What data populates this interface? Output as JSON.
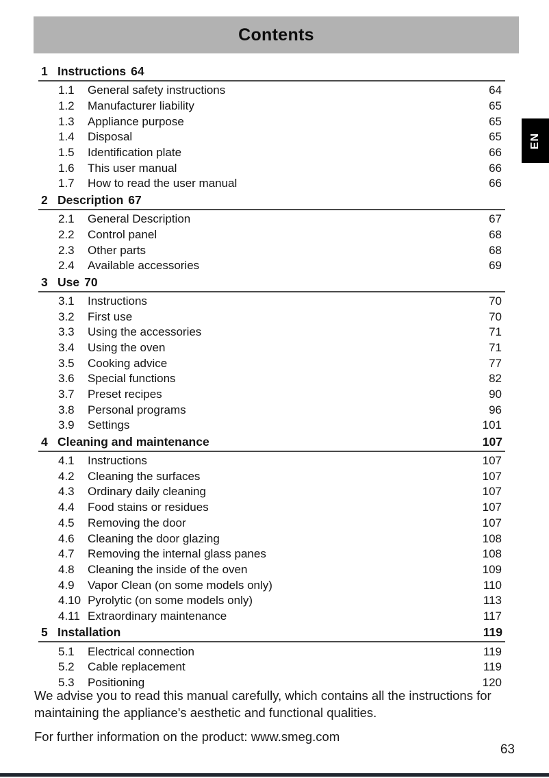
{
  "page": {
    "title": "Contents",
    "language_tab": "EN",
    "page_number": "63",
    "note_paragraph": "We advise you to read this manual carefully, which contains all the instructions for maintaining the appliance's aesthetic and functional qualities.",
    "info_line": "For further information on the product: www.smeg.com"
  },
  "colors": {
    "header_bg": "#b2b2b2",
    "tab_bg": "#000000",
    "tab_text": "#ffffff",
    "bottom_bar": "#1f262e",
    "text": "#141414"
  },
  "toc": {
    "sections": [
      {
        "number": "1",
        "title": "Instructions",
        "page": "64",
        "page_inline": true,
        "items": [
          {
            "number": "1.1",
            "label": "General safety instructions",
            "page": "64"
          },
          {
            "number": "1.2",
            "label": "Manufacturer liability",
            "page": "65"
          },
          {
            "number": "1.3",
            "label": "Appliance purpose",
            "page": "65"
          },
          {
            "number": "1.4",
            "label": "Disposal",
            "page": "65"
          },
          {
            "number": "1.5",
            "label": "Identification plate",
            "page": "66"
          },
          {
            "number": "1.6",
            "label": "This user manual",
            "page": "66"
          },
          {
            "number": "1.7",
            "label": "How to read the user manual",
            "page": "66"
          }
        ]
      },
      {
        "number": "2",
        "title": "Description",
        "page": "67",
        "page_inline": true,
        "items": [
          {
            "number": "2.1",
            "label": "General Description",
            "page": "67"
          },
          {
            "number": "2.2",
            "label": "Control panel",
            "page": "68"
          },
          {
            "number": "2.3",
            "label": "Other parts",
            "page": "68"
          },
          {
            "number": "2.4",
            "label": "Available accessories",
            "page": "69"
          }
        ]
      },
      {
        "number": "3",
        "title": "Use",
        "page": "70",
        "page_inline": true,
        "items": [
          {
            "number": "3.1",
            "label": "Instructions",
            "page": "70"
          },
          {
            "number": "3.2",
            "label": "First use",
            "page": "70"
          },
          {
            "number": "3.3",
            "label": "Using the accessories",
            "page": "71"
          },
          {
            "number": "3.4",
            "label": "Using the oven",
            "page": "71"
          },
          {
            "number": "3.5",
            "label": "Cooking advice",
            "page": "77"
          },
          {
            "number": "3.6",
            "label": "Special functions",
            "page": "82"
          },
          {
            "number": "3.7",
            "label": "Preset recipes",
            "page": "90"
          },
          {
            "number": "3.8",
            "label": "Personal programs",
            "page": "96"
          },
          {
            "number": "3.9",
            "label": "Settings",
            "page": "101"
          }
        ]
      },
      {
        "number": "4",
        "title": "Cleaning and maintenance",
        "page": "107",
        "page_inline": false,
        "items": [
          {
            "number": "4.1",
            "label": "Instructions",
            "page": "107"
          },
          {
            "number": "4.2",
            "label": "Cleaning the surfaces",
            "page": "107"
          },
          {
            "number": "4.3",
            "label": "Ordinary daily cleaning",
            "page": "107"
          },
          {
            "number": "4.4",
            "label": "Food stains or residues",
            "page": "107"
          },
          {
            "number": "4.5",
            "label": "Removing the door",
            "page": "107"
          },
          {
            "number": "4.6",
            "label": "Cleaning the door glazing",
            "page": "108"
          },
          {
            "number": "4.7",
            "label": "Removing the internal glass panes",
            "page": "108"
          },
          {
            "number": "4.8",
            "label": "Cleaning the inside of the oven",
            "page": "109"
          },
          {
            "number": "4.9",
            "label": "Vapor Clean (on some models only)",
            "page": "110"
          },
          {
            "number": "4.10",
            "label": "Pyrolytic (on some models only)",
            "page": "113"
          },
          {
            "number": "4.11",
            "label": "Extraordinary maintenance",
            "page": "117"
          }
        ]
      },
      {
        "number": "5",
        "title": "Installation",
        "page": "119",
        "page_inline": false,
        "items": [
          {
            "number": "5.1",
            "label": "Electrical connection",
            "page": "119"
          },
          {
            "number": "5.2",
            "label": "Cable replacement",
            "page": "119"
          },
          {
            "number": "5.3",
            "label": "Positioning",
            "page": "120"
          }
        ]
      }
    ]
  }
}
